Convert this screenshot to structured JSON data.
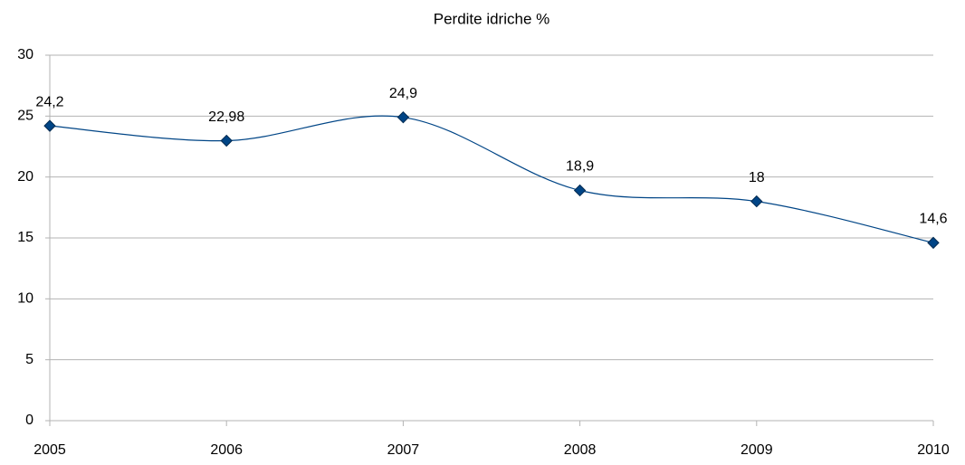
{
  "chart_data": {
    "type": "line",
    "title": "Perdite idriche %",
    "x": [
      2005,
      2006,
      2007,
      2008,
      2009,
      2010
    ],
    "xlim": [
      2005,
      2010
    ],
    "xticks": [
      2005,
      2006,
      2007,
      2008,
      2009,
      2010
    ],
    "series": [
      {
        "color": "#004586",
        "values": [
          24.2,
          22.98,
          24.9,
          18.9,
          18,
          14.6
        ],
        "value_labels": [
          "24,2",
          "22,98",
          "24,9",
          "18,9",
          "18",
          "14,6"
        ]
      }
    ],
    "ylim": [
      0,
      30
    ],
    "yticks": [
      0,
      5,
      10,
      15,
      20,
      25,
      30
    ],
    "grid": true,
    "smooth": true
  }
}
